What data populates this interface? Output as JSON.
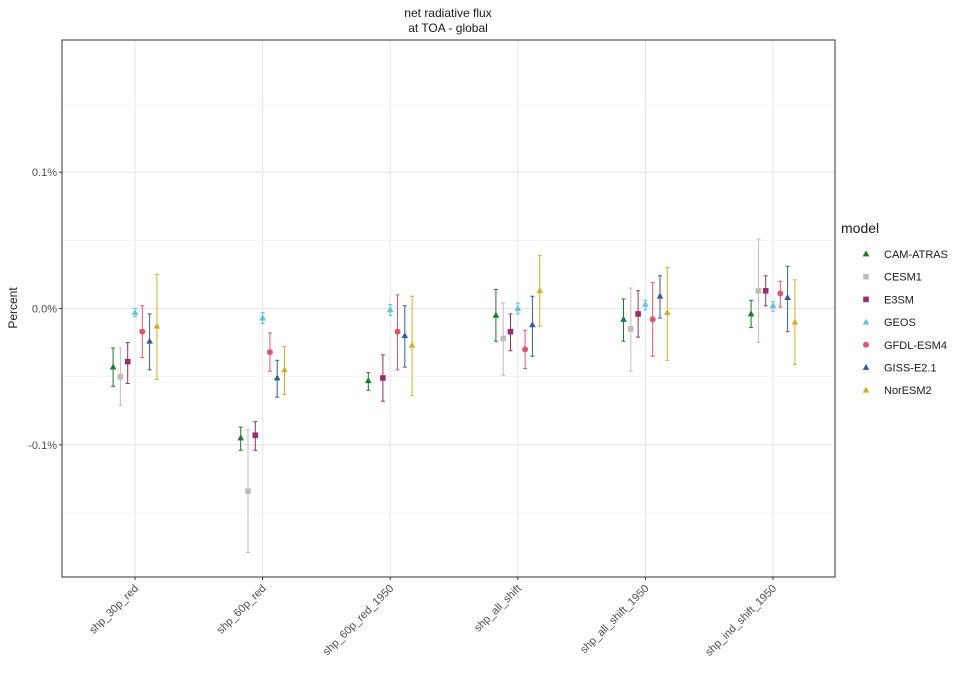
{
  "chart_data": {
    "type": "scatter",
    "title_lines": [
      "net radiative flux",
      "at TOA - global"
    ],
    "xlabel": "",
    "ylabel": "Percent",
    "categories": [
      "shp_30p_red",
      "shp_60p_red",
      "shp_60p_red_1950",
      "shp_all_shift",
      "shp_all_shift_1950",
      "shp_ind_shift_1950"
    ],
    "yticks": [
      -0.1,
      0.0,
      0.1
    ],
    "ytick_labels": [
      "-0.1%",
      "0.0%",
      "0.1%"
    ],
    "ylim": [
      -0.197,
      0.197
    ],
    "grid": true,
    "legend_title": "model",
    "legend_position": "right",
    "series": [
      {
        "name": "CAM-ATRAS",
        "color": "#1a7a2e",
        "marker": "triangle",
        "values": [
          -0.043,
          -0.095,
          -0.053,
          -0.005,
          -0.008,
          -0.004
        ],
        "lower": [
          -0.057,
          -0.104,
          -0.06,
          -0.024,
          -0.024,
          -0.014
        ],
        "upper": [
          -0.029,
          -0.087,
          -0.047,
          0.014,
          0.007,
          0.006
        ]
      },
      {
        "name": "CESM1",
        "color": "#bdbdbd",
        "marker": "square",
        "values": [
          -0.05,
          -0.134,
          null,
          -0.022,
          -0.015,
          0.013
        ],
        "lower": [
          -0.071,
          -0.179,
          null,
          -0.049,
          -0.046,
          -0.025
        ],
        "upper": [
          -0.029,
          -0.089,
          null,
          0.004,
          0.015,
          0.051
        ]
      },
      {
        "name": "E3SM",
        "color": "#9b2d6b",
        "marker": "square",
        "values": [
          -0.039,
          -0.093,
          -0.051,
          -0.017,
          -0.004,
          0.013
        ],
        "lower": [
          -0.055,
          -0.104,
          -0.068,
          -0.031,
          -0.021,
          0.002
        ],
        "upper": [
          -0.025,
          -0.083,
          -0.034,
          -0.004,
          0.013,
          0.024
        ]
      },
      {
        "name": "GEOS",
        "color": "#56c5e0",
        "marker": "triangle",
        "values": [
          -0.003,
          -0.007,
          -0.001,
          0.0,
          0.003,
          0.002
        ],
        "lower": [
          -0.006,
          -0.011,
          -0.005,
          -0.004,
          -0.001,
          -0.002
        ],
        "upper": [
          0.0,
          -0.003,
          0.003,
          0.004,
          0.006,
          0.005
        ]
      },
      {
        "name": "GFDL-ESM4",
        "color": "#e0556e",
        "marker": "circle",
        "values": [
          -0.017,
          -0.032,
          -0.017,
          -0.03,
          -0.008,
          0.011
        ],
        "lower": [
          -0.036,
          -0.046,
          -0.045,
          -0.044,
          -0.035,
          0.001
        ],
        "upper": [
          0.002,
          -0.018,
          0.01,
          -0.016,
          0.019,
          0.02
        ]
      },
      {
        "name": "GISS-E2.1",
        "color": "#2d5f9e",
        "marker": "triangle",
        "values": [
          -0.024,
          -0.051,
          -0.02,
          -0.012,
          0.009,
          0.008
        ],
        "lower": [
          -0.045,
          -0.065,
          -0.043,
          -0.035,
          -0.007,
          -0.017
        ],
        "upper": [
          -0.004,
          -0.038,
          0.002,
          0.009,
          0.024,
          0.031
        ]
      },
      {
        "name": "NorESM2",
        "color": "#d4b020",
        "marker": "triangle",
        "values": [
          -0.013,
          -0.045,
          -0.027,
          0.013,
          -0.003,
          -0.01
        ],
        "lower": [
          -0.052,
          -0.063,
          -0.064,
          -0.013,
          -0.038,
          -0.041
        ],
        "upper": [
          0.025,
          -0.028,
          0.009,
          0.039,
          0.03,
          0.021
        ]
      }
    ]
  }
}
